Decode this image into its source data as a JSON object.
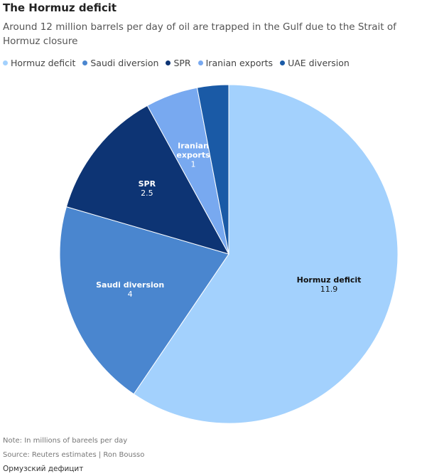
{
  "chart_data": {
    "type": "pie",
    "title": "The Hormuz deficit",
    "subtitle": "Around 12 million barrels per day of oil are trapped in the Gulf due to the Strait of Hormuz closure",
    "categories": [
      "Hormuz deficit",
      "Saudi diversion",
      "SPR",
      "Iranian exports",
      "UAE diversion"
    ],
    "values": [
      11.9,
      4,
      2.5,
      1,
      0.6
    ],
    "colors": [
      "#a3d1fd",
      "#4a86cf",
      "#0d3474",
      "#78a9f0",
      "#1a5aa6"
    ],
    "note": "Note: In millions of bareels per day",
    "source": "Source: Reuters estimates | Ron Bousso",
    "footer": "Ормузский дефицит"
  }
}
